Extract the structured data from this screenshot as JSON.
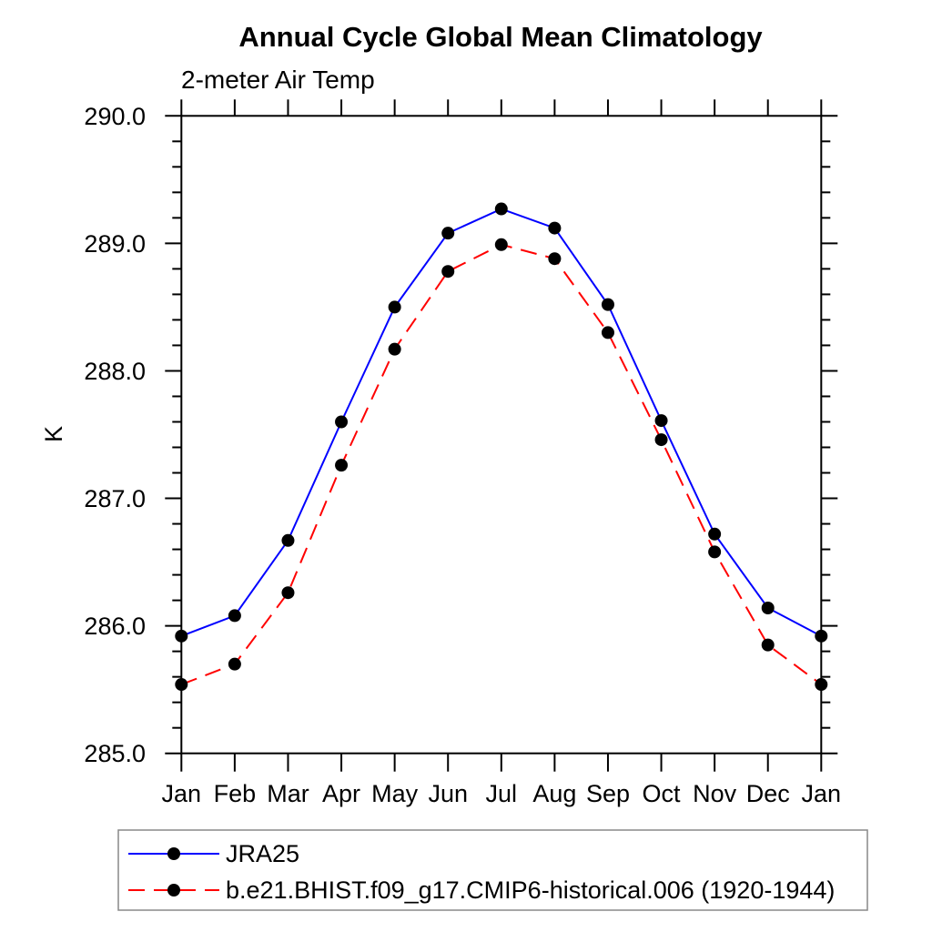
{
  "title": "Annual Cycle Global Mean Climatology",
  "subtitle": "2-meter Air Temp",
  "chart_data": {
    "type": "line",
    "x_categories": [
      "Jan",
      "Feb",
      "Mar",
      "Apr",
      "May",
      "Jun",
      "Jul",
      "Aug",
      "Sep",
      "Oct",
      "Nov",
      "Dec",
      "Jan"
    ],
    "xlabel": "",
    "ylabel": "K",
    "ylim": [
      285.0,
      290.0
    ],
    "ytick_interval": 1.0,
    "yminor_interval": 0.2,
    "ytick_labels": [
      "285.0",
      "286.0",
      "287.0",
      "288.0",
      "289.0",
      "290.0"
    ],
    "grid": false,
    "legend_position": "bottom-left",
    "axis_color": "#000000",
    "marker_color": "#000000",
    "series": [
      {
        "name": "JRA25",
        "color": "#0000ff",
        "line_style": "solid",
        "marker": "filled-circle",
        "values": [
          285.92,
          286.08,
          286.67,
          287.6,
          288.5,
          289.08,
          289.27,
          289.12,
          288.52,
          287.61,
          286.72,
          286.14,
          285.92
        ]
      },
      {
        "name": "b.e21.BHIST.f09_g17.CMIP6-historical.006 (1920-1944)",
        "color": "#ff0000",
        "line_style": "dashed",
        "marker": "filled-circle",
        "values": [
          285.54,
          285.7,
          286.26,
          287.26,
          288.17,
          288.78,
          288.99,
          288.88,
          288.3,
          287.46,
          286.58,
          285.85,
          285.54
        ]
      }
    ]
  }
}
